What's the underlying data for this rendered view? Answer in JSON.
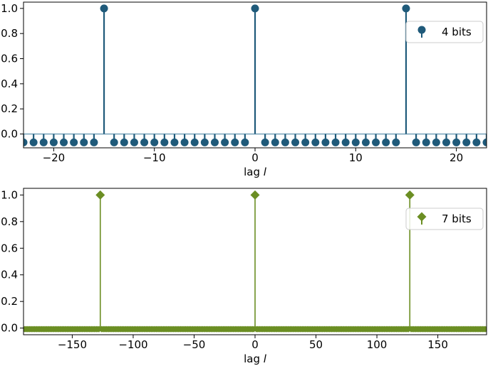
{
  "chart_data": [
    {
      "type": "stem",
      "title": "",
      "xlabel": "lag",
      "xlabel_var": "l",
      "ylabel": "",
      "xlim": [
        -23,
        23
      ],
      "ylim": [
        -0.11,
        1.05
      ],
      "xticks": [
        -20,
        -10,
        0,
        10,
        20
      ],
      "xtick_labels": [
        "−20",
        "−10",
        "0",
        "10",
        "20"
      ],
      "yticks": [
        0.0,
        0.2,
        0.4,
        0.6,
        0.8,
        1.0
      ],
      "ytick_labels": [
        "0.0",
        "0.2",
        "0.4",
        "0.6",
        "0.8",
        "1.0"
      ],
      "baseline": 0.0,
      "legend_position": "upper-right",
      "color": "#1f5a7a",
      "marker": "circle",
      "series": [
        {
          "name": "4 bits",
          "period": 15,
          "peak_value": 1.0,
          "off_peak_value": -0.0667,
          "x_range": [
            -23,
            23
          ],
          "peak_lags": [
            -15,
            0,
            15
          ]
        }
      ]
    },
    {
      "type": "stem",
      "title": "",
      "xlabel": "lag",
      "xlabel_var": "l",
      "ylabel": "",
      "xlim": [
        -190,
        190
      ],
      "ylim": [
        -0.05,
        1.05
      ],
      "xticks": [
        -150,
        -100,
        -50,
        0,
        50,
        100,
        150
      ],
      "xtick_labels": [
        "−150",
        "−100",
        "−50",
        "0",
        "50",
        "100",
        "150"
      ],
      "yticks": [
        0.0,
        0.2,
        0.4,
        0.6,
        0.8,
        1.0
      ],
      "ytick_labels": [
        "0.0",
        "0.2",
        "0.4",
        "0.6",
        "0.8",
        "1.0"
      ],
      "baseline": 0.0,
      "legend_position": "upper-right",
      "color": "#6b8e23",
      "marker": "diamond",
      "series": [
        {
          "name": "7 bits",
          "period": 127,
          "peak_value": 1.0,
          "off_peak_value": -0.0079,
          "x_range": [
            -190,
            190
          ],
          "peak_lags": [
            -127,
            0,
            127
          ]
        }
      ]
    }
  ]
}
